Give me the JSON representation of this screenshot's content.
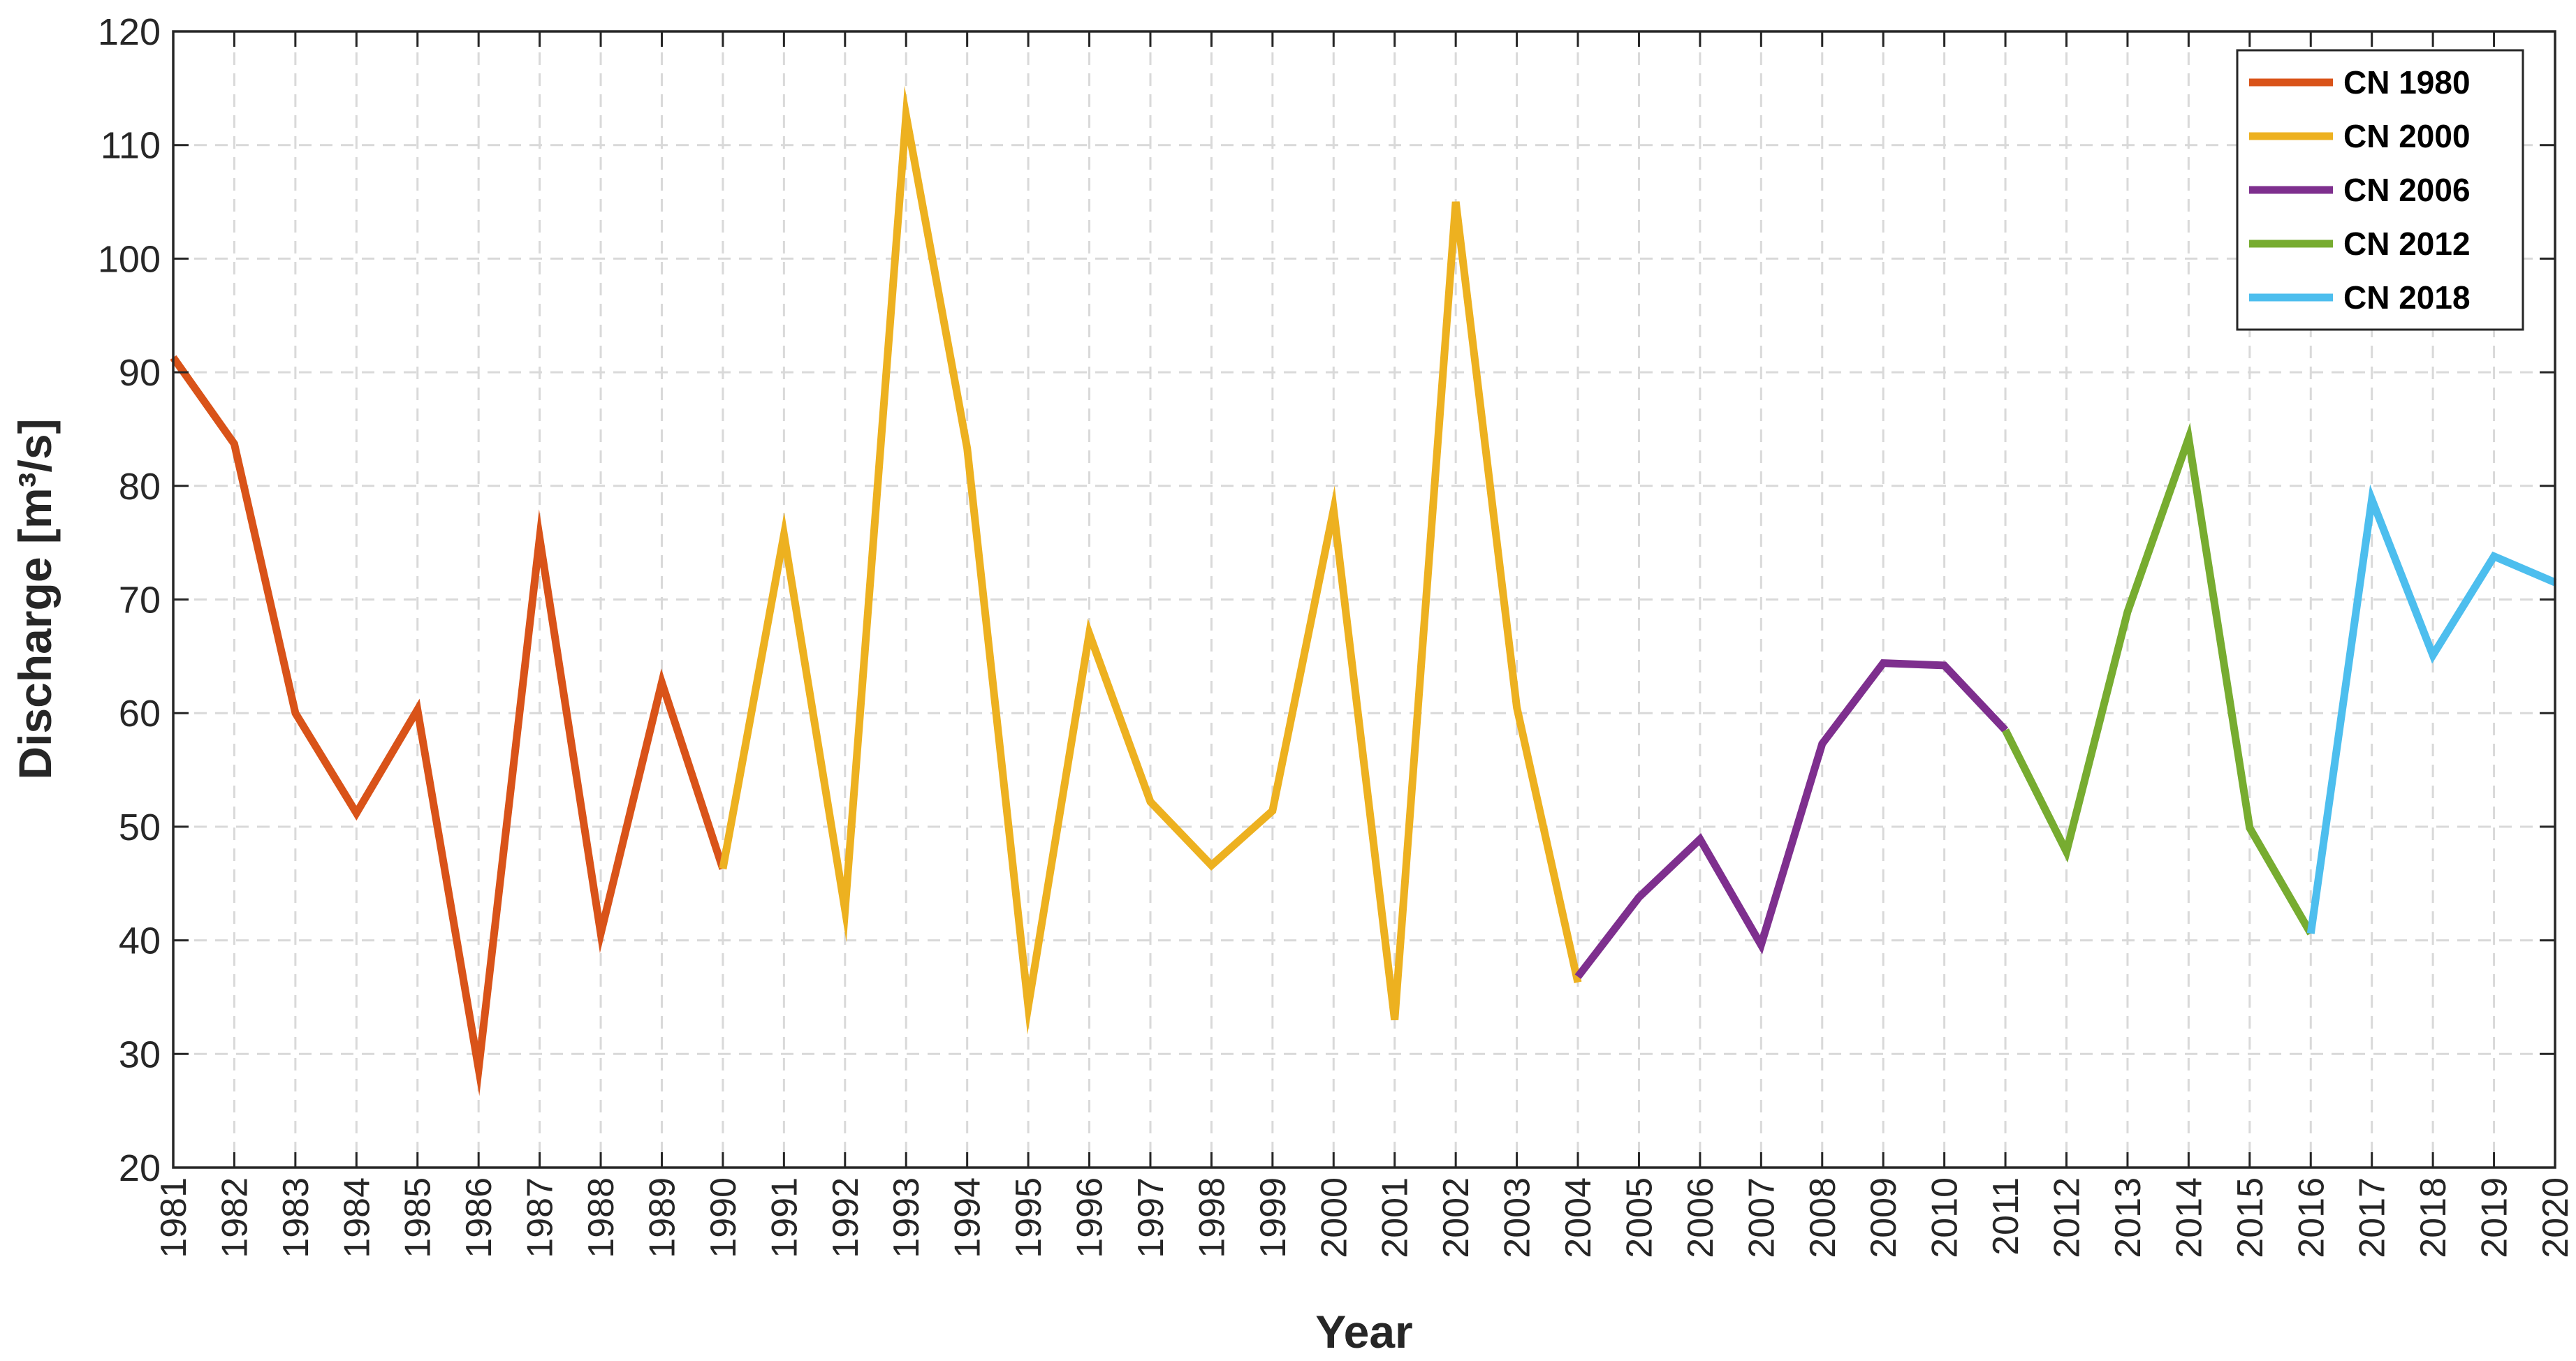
{
  "chart_data": {
    "type": "line",
    "title": "",
    "xlabel": "Year",
    "ylabel": "Discharge [m³/s]",
    "ylim": [
      20,
      120
    ],
    "yticks": [
      20,
      30,
      40,
      50,
      60,
      70,
      80,
      90,
      100,
      110,
      120
    ],
    "xlim": [
      1981,
      2020
    ],
    "x": [
      1981,
      1982,
      1983,
      1984,
      1985,
      1986,
      1987,
      1988,
      1989,
      1990,
      1991,
      1992,
      1993,
      1994,
      1995,
      1996,
      1997,
      1998,
      1999,
      2000,
      2001,
      2002,
      2003,
      2004,
      2005,
      2006,
      2007,
      2008,
      2009,
      2010,
      2011,
      2012,
      2013,
      2014,
      2015,
      2016,
      2017,
      2018,
      2019,
      2020
    ],
    "xticklabels": [
      "1981",
      "1982",
      "1983",
      "1984",
      "1985",
      "1986",
      "1987",
      "1988",
      "1989",
      "1990",
      "1991",
      "1992",
      "1993",
      "1994",
      "1995",
      "1996",
      "1997",
      "1998",
      "1999",
      "2000",
      "2001",
      "2002",
      "2003",
      "2004",
      "2005",
      "2006",
      "2007",
      "2008",
      "2009",
      "2010",
      "2011",
      "2012",
      "2013",
      "2014",
      "2015",
      "2016",
      "2017",
      "2018",
      "2019",
      "2020"
    ],
    "grid": true,
    "legend_position": "top-right",
    "series": [
      {
        "name": "CN 1980",
        "color": "#D95319",
        "x": [
          1981,
          1982,
          1983,
          1984,
          1985,
          1986,
          1987,
          1988,
          1989,
          1990
        ],
        "values": [
          91.3,
          83.7,
          60.0,
          51.2,
          60.3,
          28.7,
          75.4,
          40.6,
          62.7,
          46.3
        ]
      },
      {
        "name": "CN 2000",
        "color": "#EDB120",
        "x": [
          1990,
          1991,
          1992,
          1993,
          1994,
          1995,
          1996,
          1997,
          1998,
          1999,
          2000,
          2001,
          2002,
          2003,
          2004
        ],
        "values": [
          46.3,
          75.7,
          42.7,
          112.6,
          83.3,
          34.2,
          67.0,
          52.2,
          46.6,
          51.4,
          77.9,
          33.0,
          105.0,
          60.5,
          36.3
        ]
      },
      {
        "name": "CN 2006",
        "color": "#7E2F8E",
        "x": [
          2004,
          2005,
          2006,
          2007,
          2008,
          2009,
          2010,
          2011
        ],
        "values": [
          36.8,
          43.8,
          48.9,
          39.6,
          57.3,
          64.4,
          64.2,
          58.5
        ]
      },
      {
        "name": "CN 2012",
        "color": "#77AC30",
        "x": [
          2011,
          2012,
          2013,
          2014,
          2015,
          2016
        ],
        "values": [
          58.5,
          47.8,
          68.9,
          84.2,
          49.9,
          40.6
        ]
      },
      {
        "name": "CN 2018",
        "color": "#4DBEEE",
        "x": [
          2016,
          2017,
          2018,
          2019,
          2020
        ],
        "values": [
          40.6,
          78.8,
          65.1,
          73.8,
          71.5
        ]
      }
    ]
  }
}
